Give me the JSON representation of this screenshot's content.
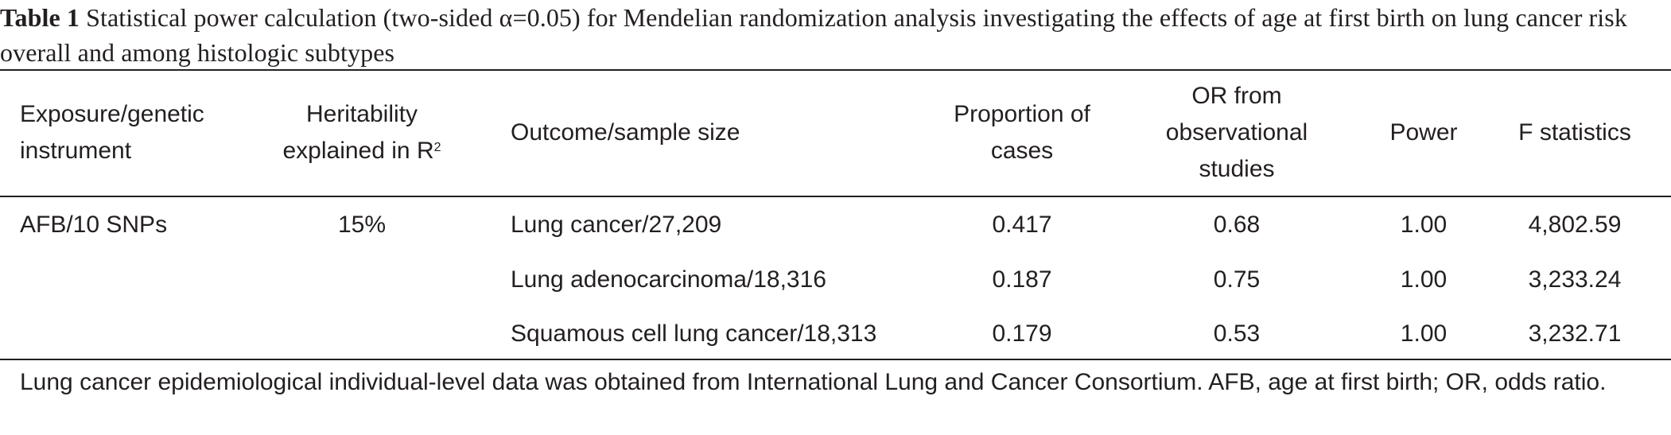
{
  "caption": {
    "label": "Table 1",
    "text": "Statistical power calculation (two-sided α=0.05) for Mendelian randomization analysis investigating the effects of age at first birth on lung cancer risk overall and among histologic subtypes"
  },
  "table": {
    "headers": {
      "exposure": "Exposure/genetic instrument",
      "heritability": "Heritability explained in R",
      "heritability_sup": "2",
      "outcome": "Outcome/sample size",
      "proportion": "Proportion of cases",
      "or": "OR from observational studies",
      "power": "Power",
      "f_statistics": "F statistics"
    },
    "exposure": "AFB/10 SNPs",
    "heritability": "15%",
    "rows": [
      {
        "outcome": "Lung cancer/27,209",
        "proportion": "0.417",
        "or": "0.68",
        "power": "1.00",
        "f_statistics": "4,802.59"
      },
      {
        "outcome": "Lung adenocarcinoma/18,316",
        "proportion": "0.187",
        "or": "0.75",
        "power": "1.00",
        "f_statistics": "3,233.24"
      },
      {
        "outcome": "Squamous cell lung cancer/18,313",
        "proportion": "0.179",
        "or": "0.53",
        "power": "1.00",
        "f_statistics": "3,232.71"
      }
    ]
  },
  "footnote": "Lung cancer epidemiological individual-level data was obtained from International Lung and Cancer Consortium. AFB, age at first birth; OR, odds ratio."
}
